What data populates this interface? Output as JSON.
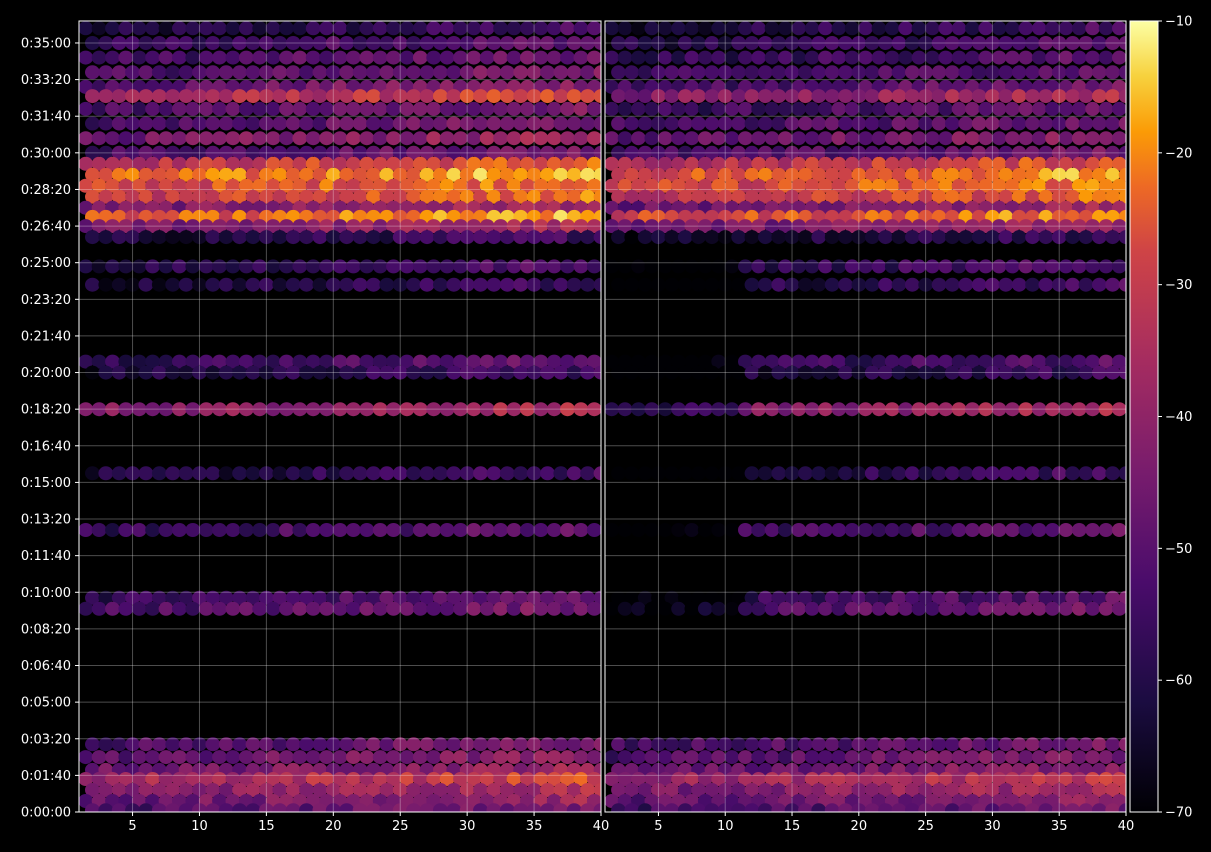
{
  "chart_data": {
    "type": "heatmap",
    "title": "",
    "xlabel": "",
    "ylabel": "",
    "background": "#000000",
    "grid": true,
    "colormap": "inferno",
    "panels": [
      {
        "name": "",
        "xlim": [
          1,
          40
        ],
        "xticks": [
          5,
          10,
          15,
          20,
          25,
          30,
          35,
          40
        ],
        "xtick_labels": [
          "5",
          "10",
          "15",
          "20",
          "25",
          "30",
          "35",
          "40"
        ]
      },
      {
        "name": "",
        "xlim": [
          1,
          40
        ],
        "xticks": [
          5,
          10,
          15,
          20,
          25,
          30,
          35,
          40
        ],
        "xtick_labels": [
          "5",
          "10",
          "15",
          "20",
          "25",
          "30",
          "35",
          "40"
        ]
      }
    ],
    "y": {
      "unit": "seconds",
      "ylim": [
        0,
        2160
      ],
      "ticks": [
        0,
        100,
        200,
        300,
        400,
        500,
        600,
        700,
        800,
        900,
        1000,
        1100,
        1200,
        1300,
        1400,
        1500,
        1600,
        1700,
        1800,
        1900,
        2000,
        2100
      ],
      "tick_labels": [
        "0:00:00",
        "0:01:40",
        "0:03:20",
        "0:05:00",
        "0:06:40",
        "0:08:20",
        "0:10:00",
        "0:11:40",
        "0:13:20",
        "0:15:00",
        "0:16:40",
        "0:18:20",
        "0:20:00",
        "0:21:40",
        "0:23:20",
        "0:25:00",
        "0:26:40",
        "0:28:20",
        "0:30:00",
        "0:31:40",
        "0:33:20",
        "0:35:00"
      ]
    },
    "colorbar": {
      "range": [
        -70,
        -10
      ],
      "ticks": [
        -10,
        -20,
        -30,
        -40,
        -50,
        -60,
        -70
      ],
      "tick_labels": [
        "−10",
        "−20",
        "−30",
        "−40",
        "−50",
        "−60",
        "−70"
      ]
    },
    "bands": [
      {
        "t": 2140,
        "left": -58,
        "right": -58
      },
      {
        "t": 2100,
        "left": -52,
        "right": -55
      },
      {
        "t": 2060,
        "left": -50,
        "right": -54
      },
      {
        "t": 2020,
        "left": -48,
        "right": -52
      },
      {
        "t": 1980,
        "left": -45,
        "right": -50
      },
      {
        "t": 1955,
        "left": -32,
        "right": -38
      },
      {
        "t": 1920,
        "left": -48,
        "right": -52
      },
      {
        "t": 1880,
        "left": -48,
        "right": -50
      },
      {
        "t": 1840,
        "left": -42,
        "right": -45
      },
      {
        "t": 1800,
        "left": -48,
        "right": -50
      },
      {
        "t": 1770,
        "left": -28,
        "right": -30
      },
      {
        "t": 1740,
        "left": -20,
        "right": -22
      },
      {
        "t": 1710,
        "left": -24,
        "right": -25
      },
      {
        "t": 1680,
        "left": -26,
        "right": -28
      },
      {
        "t": 1650,
        "left": -40,
        "right": -42
      },
      {
        "t": 1625,
        "left": -22,
        "right": -24
      },
      {
        "t": 1600,
        "left": -40,
        "right": -42
      },
      {
        "t": 1570,
        "left": -58,
        "right": -60
      },
      {
        "t": 1490,
        "left": -55,
        "right": -56
      },
      {
        "t": 1440,
        "left": -58,
        "right": -58
      },
      {
        "t": 1230,
        "left": -52,
        "right": -55
      },
      {
        "t": 1200,
        "left": -58,
        "right": -60
      },
      {
        "t": 1100,
        "left": -38,
        "right": -40
      },
      {
        "t": 925,
        "left": -58,
        "right": -58
      },
      {
        "t": 770,
        "left": -52,
        "right": -53
      },
      {
        "t": 585,
        "left": -52,
        "right": -54
      },
      {
        "t": 555,
        "left": -48,
        "right": -50
      },
      {
        "t": 185,
        "left": -48,
        "right": -50
      },
      {
        "t": 150,
        "left": -45,
        "right": -48
      },
      {
        "t": 115,
        "left": -42,
        "right": -45
      },
      {
        "t": 90,
        "left": -32,
        "right": -35
      },
      {
        "t": 60,
        "left": -38,
        "right": -40
      },
      {
        "t": 30,
        "left": -42,
        "right": -45
      },
      {
        "t": 5,
        "left": -48,
        "right": -50
      }
    ]
  }
}
